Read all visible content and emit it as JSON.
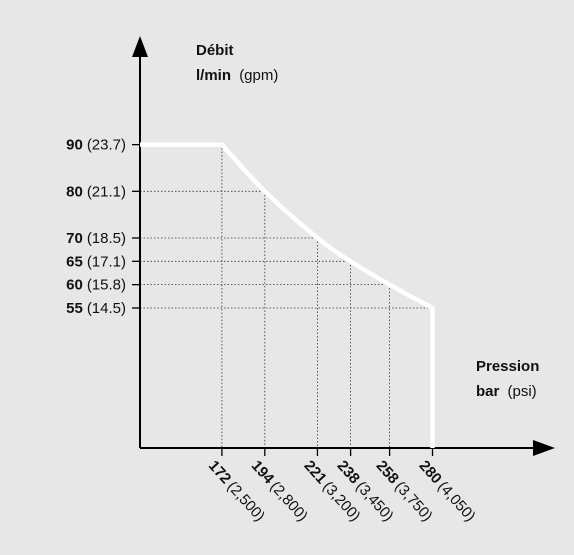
{
  "chart_data": {
    "type": "line",
    "title": "",
    "ylabel": {
      "main": "Débit",
      "unit_bold": "l/min",
      "unit_alt": "(gpm)"
    },
    "xlabel": {
      "main": "Pression",
      "unit_bold": "bar",
      "unit_alt": "(psi)"
    },
    "xlim": [
      130,
      325
    ],
    "ylim": [
      25,
      130
    ],
    "y_ticks": [
      {
        "value": 90,
        "label": "90",
        "alt": "(23.7)"
      },
      {
        "value": 80,
        "label": "80",
        "alt": "(21.1)"
      },
      {
        "value": 70,
        "label": "70",
        "alt": "(18.5)"
      },
      {
        "value": 65,
        "label": "65",
        "alt": "(17.1)"
      },
      {
        "value": 60,
        "label": "60",
        "alt": "(15.8)"
      },
      {
        "value": 55,
        "label": "55",
        "alt": "(14.5)"
      }
    ],
    "x_ticks": [
      {
        "value": 172,
        "label": "172",
        "alt": "(2,500)"
      },
      {
        "value": 194,
        "label": "194",
        "alt": "(2,800)"
      },
      {
        "value": 221,
        "label": "221",
        "alt": "(3,200)"
      },
      {
        "value": 238,
        "label": "238",
        "alt": "(3,450)"
      },
      {
        "value": 258,
        "label": "258",
        "alt": "(3,750)"
      },
      {
        "value": 280,
        "label": "280",
        "alt": "(4,050)"
      }
    ],
    "series": [
      {
        "x": [
          130,
          172,
          194,
          221,
          238,
          258,
          280,
          280
        ],
        "y": [
          90,
          90,
          80,
          70,
          65,
          60,
          55,
          25
        ]
      }
    ],
    "grid": "dotted drop lines from each data point to both axes",
    "legend": "none"
  }
}
